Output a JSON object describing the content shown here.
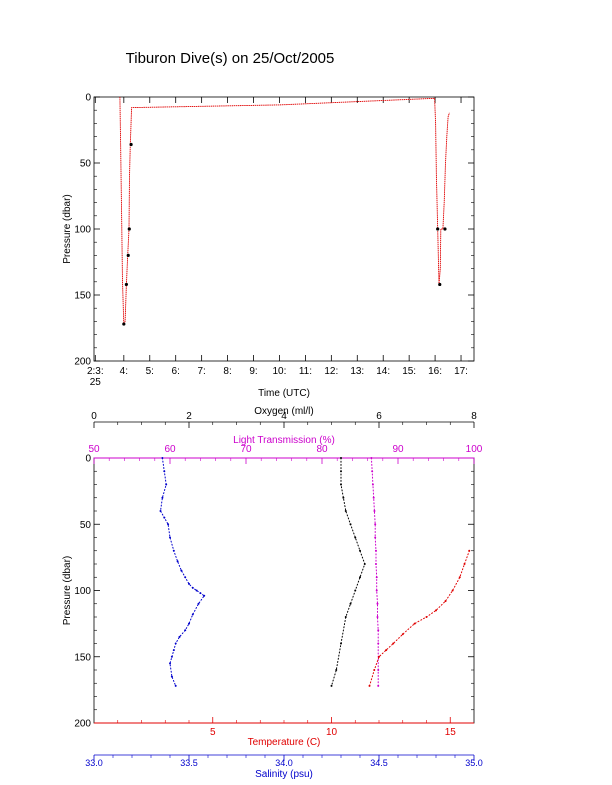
{
  "title": "Tiburon Dive(s) on 25/Oct/2005",
  "chart_data": [
    {
      "type": "line",
      "title": "Tiburon Dive(s) on 25/Oct/2005",
      "xlabel": "Time (UTC)",
      "ylabel": "Pressure (dbar)",
      "xlim": [
        2.85,
        17.5
      ],
      "ylim": [
        200,
        0
      ],
      "x_ticks": [
        {
          "v": 2.9,
          "label": "2:3:"
        },
        {
          "v": 4,
          "label": "4:"
        },
        {
          "v": 5,
          "label": "5:"
        },
        {
          "v": 6,
          "label": "6:"
        },
        {
          "v": 7,
          "label": "7:"
        },
        {
          "v": 8,
          "label": "8:"
        },
        {
          "v": 9,
          "label": "9:"
        },
        {
          "v": 10,
          "label": "10:"
        },
        {
          "v": 11,
          "label": "11:"
        },
        {
          "v": 12,
          "label": "12:"
        },
        {
          "v": 13,
          "label": "13:"
        },
        {
          "v": 14,
          "label": "14:"
        },
        {
          "v": 15,
          "label": "15:"
        },
        {
          "v": 16,
          "label": "16:"
        },
        {
          "v": 17,
          "label": "17:"
        }
      ],
      "x_tick_sublabel": "25",
      "y_ticks": [
        0,
        50,
        100,
        150,
        200
      ],
      "series": [
        {
          "color": "#e00000",
          "x": [
            3.85,
            3.88,
            3.92,
            3.95,
            4.0,
            4.05,
            4.1,
            4.15,
            4.2,
            4.22,
            4.25,
            4.3,
            10.0,
            15.98,
            16.02,
            16.05,
            16.1,
            16.15,
            16.2,
            16.22,
            16.25,
            16.3,
            16.35,
            16.4,
            16.45,
            16.5,
            16.55
          ],
          "y": [
            0,
            40,
            100,
            140,
            172,
            170,
            142,
            120,
            100,
            60,
            36,
            8,
            6,
            1,
            20,
            60,
            100,
            142,
            130,
            100,
            100,
            100,
            80,
            50,
            30,
            15,
            12
          ]
        }
      ],
      "markers": [
        {
          "x": 4.0,
          "y": 172
        },
        {
          "x": 4.1,
          "y": 142
        },
        {
          "x": 4.17,
          "y": 120
        },
        {
          "x": 4.21,
          "y": 100
        },
        {
          "x": 4.28,
          "y": 36
        },
        {
          "x": 16.1,
          "y": 100
        },
        {
          "x": 16.18,
          "y": 142
        },
        {
          "x": 16.38,
          "y": 100
        }
      ]
    },
    {
      "type": "scatter",
      "ylabel": "Pressure (dbar)",
      "ylim": [
        200,
        0
      ],
      "y_ticks": [
        0,
        50,
        100,
        150,
        200
      ],
      "axes": [
        {
          "key": "oxygen",
          "label": "Oxygen (ml/l)",
          "color": "#000000",
          "position": "top-outer",
          "range": [
            0,
            8
          ],
          "ticks": [
            0,
            2,
            4,
            6,
            8
          ]
        },
        {
          "key": "light",
          "label": "Light Transmission (%)",
          "color": "#cc00cc",
          "position": "top-inner",
          "range": [
            50,
            100
          ],
          "ticks": [
            50,
            60,
            70,
            80,
            90,
            100
          ]
        },
        {
          "key": "temperature",
          "label": "Temperature (C)",
          "color": "#e00000",
          "position": "bottom-inner",
          "range": [
            0,
            16
          ],
          "ticks": [
            5,
            10,
            15
          ]
        },
        {
          "key": "salinity",
          "label": "Salinity (psu)",
          "color": "#0000cc",
          "position": "bottom-outer",
          "range": [
            33.0,
            35.0
          ],
          "ticks": [
            "33.0",
            "33.5",
            "34.0",
            "34.5",
            "35.0"
          ],
          "tick_values": [
            33.0,
            33.5,
            34.0,
            34.5,
            35.0
          ]
        }
      ],
      "series": [
        {
          "axis": "salinity",
          "color": "#0000cc",
          "x": [
            33.36,
            33.37,
            33.38,
            33.36,
            33.35,
            33.37,
            33.39,
            33.4,
            33.42,
            33.44,
            33.46,
            33.48,
            33.5,
            33.52,
            33.54,
            33.56,
            33.58,
            33.55,
            33.52,
            33.5,
            33.48,
            33.45,
            33.43,
            33.42,
            33.41,
            33.4,
            33.41,
            33.43
          ],
          "y": [
            0,
            10,
            20,
            30,
            40,
            45,
            50,
            60,
            70,
            78,
            85,
            90,
            95,
            98,
            100,
            102,
            104,
            110,
            118,
            125,
            130,
            135,
            140,
            145,
            150,
            155,
            165,
            172
          ]
        },
        {
          "axis": "oxygen",
          "color": "#000000",
          "x": [
            5.2,
            5.2,
            5.2,
            5.25,
            5.3,
            5.4,
            5.5,
            5.6,
            5.7,
            5.6,
            5.5,
            5.4,
            5.3,
            5.2,
            5.1,
            5.0
          ],
          "y": [
            0,
            10,
            20,
            30,
            40,
            50,
            60,
            70,
            80,
            90,
            100,
            110,
            120,
            140,
            160,
            172
          ]
        },
        {
          "axis": "light",
          "color": "#cc00cc",
          "x": [
            86.5,
            86.6,
            86.7,
            86.8,
            86.9,
            87.0,
            87.0,
            87.1,
            87.1,
            87.2,
            87.2,
            87.3,
            87.3,
            87.4,
            87.4,
            87.4,
            87.4
          ],
          "y": [
            0,
            10,
            20,
            30,
            40,
            50,
            60,
            70,
            80,
            90,
            100,
            110,
            120,
            130,
            140,
            160,
            172
          ]
        },
        {
          "axis": "temperature",
          "color": "#e00000",
          "x": [
            11.6,
            11.8,
            12.0,
            12.3,
            12.6,
            13.0,
            13.5,
            14.0,
            14.4,
            14.8,
            15.1,
            15.4,
            15.6,
            15.8
          ],
          "y": [
            172,
            160,
            150,
            145,
            140,
            133,
            125,
            120,
            115,
            108,
            100,
            90,
            80,
            70
          ]
        }
      ]
    }
  ]
}
